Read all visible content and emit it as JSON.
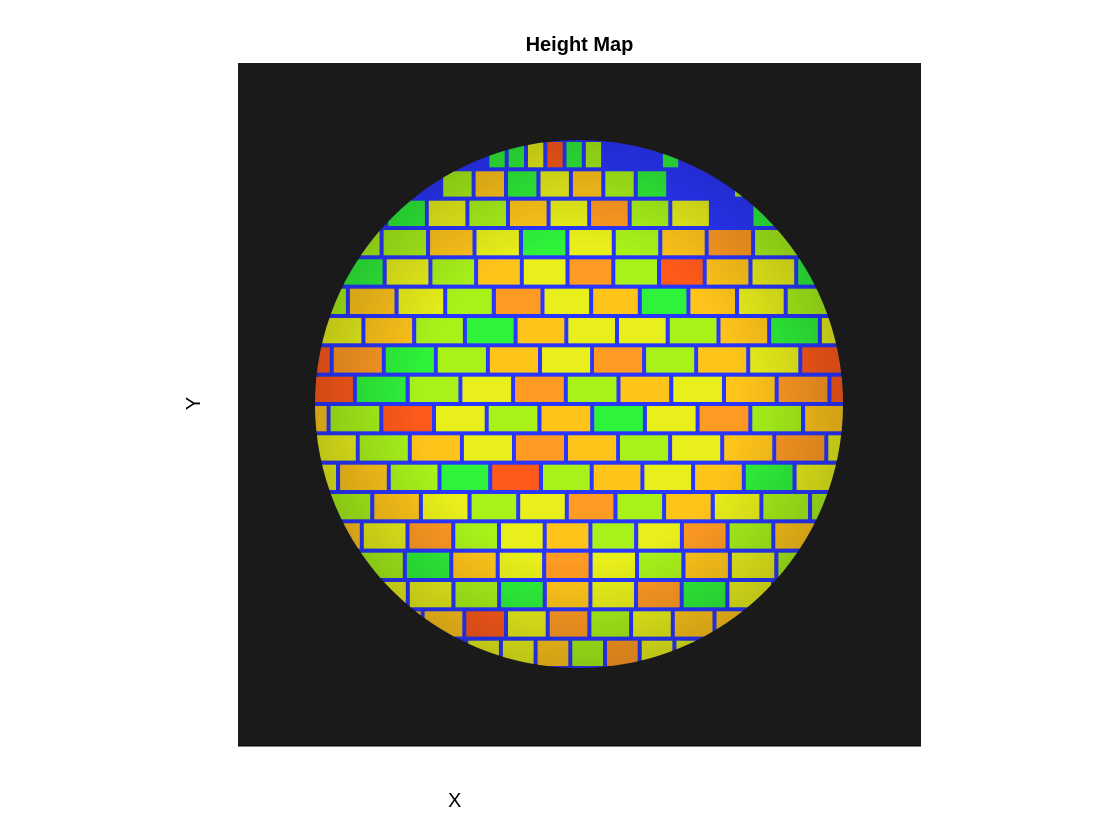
{
  "chart_data": {
    "type": "heatmap",
    "title": "Height Map",
    "xlabel": "X",
    "ylabel": "Y",
    "background": "#1a1a1a",
    "mortar_color": "#2a36ff",
    "colormap": [
      "#2a36ff",
      "#2ff23a",
      "#a8f21a",
      "#e8ef1a",
      "#ffc41a",
      "#ff9a22",
      "#ff5a1a"
    ],
    "brick_rows": [
      [
        1,
        1,
        3,
        6,
        1,
        2,
        0,
        0,
        0
      ],
      [
        2,
        4,
        1,
        3,
        4,
        2,
        1,
        0,
        0
      ],
      [
        1,
        3,
        2,
        4,
        3,
        5,
        2,
        3,
        0
      ],
      [
        2,
        4,
        3,
        1,
        3,
        2,
        4,
        5,
        2
      ],
      [
        1,
        3,
        2,
        4,
        3,
        5,
        2,
        6,
        4,
        3
      ],
      [
        4,
        3,
        2,
        5,
        3,
        4,
        1,
        4,
        3,
        2
      ],
      [
        3,
        4,
        2,
        1,
        4,
        3,
        3,
        2,
        4,
        1
      ],
      [
        5,
        1,
        2,
        4,
        3,
        5,
        2,
        4,
        3,
        6
      ],
      [
        6,
        1,
        2,
        3,
        5,
        2,
        4,
        3,
        4,
        5
      ],
      [
        2,
        6,
        3,
        2,
        4,
        1,
        3,
        5,
        2,
        4
      ],
      [
        3,
        2,
        4,
        3,
        5,
        4,
        2,
        3,
        4,
        5
      ],
      [
        4,
        2,
        1,
        6,
        2,
        4,
        3,
        4,
        1,
        3
      ],
      [
        2,
        4,
        3,
        2,
        3,
        5,
        2,
        4,
        3,
        2
      ],
      [
        3,
        5,
        2,
        3,
        4,
        2,
        3,
        5,
        2,
        4
      ],
      [
        2,
        1,
        4,
        3,
        5,
        3,
        2,
        4,
        3
      ],
      [
        3,
        2,
        1,
        4,
        3,
        5,
        1,
        3
      ],
      [
        4,
        6,
        3,
        5,
        2,
        3,
        4
      ],
      [
        3,
        4,
        2,
        5,
        3
      ]
    ]
  }
}
